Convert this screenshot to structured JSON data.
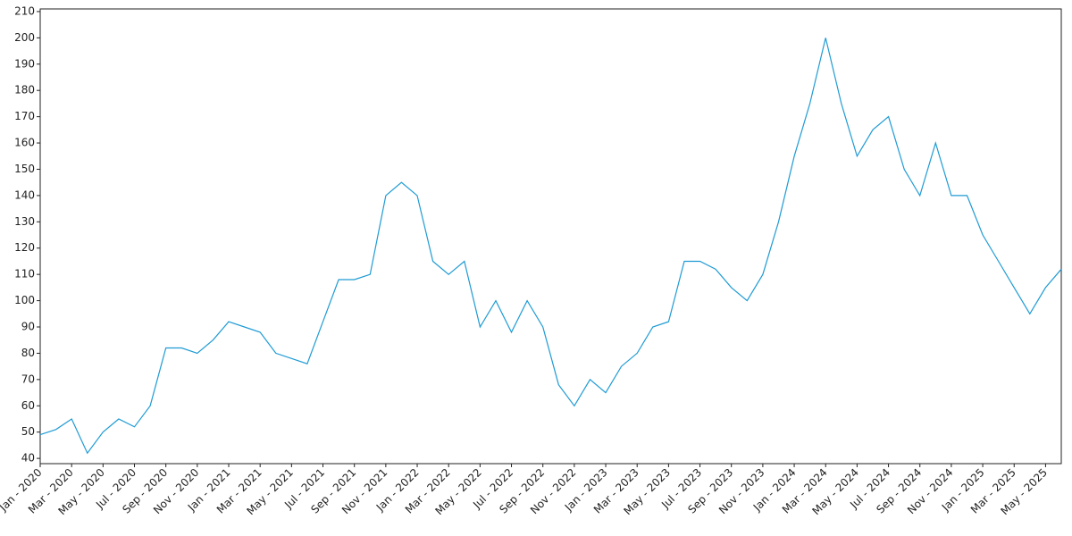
{
  "chart_data": {
    "type": "line",
    "color": "#1f9bd4",
    "x": [
      "2020-01",
      "2020-02",
      "2020-03",
      "2020-04",
      "2020-05",
      "2020-06",
      "2020-07",
      "2020-08",
      "2020-09",
      "2020-10",
      "2020-11",
      "2020-12",
      "2021-01",
      "2021-02",
      "2021-03",
      "2021-04",
      "2021-05",
      "2021-06",
      "2021-07",
      "2021-08",
      "2021-09",
      "2021-10",
      "2021-11",
      "2021-12",
      "2022-01",
      "2022-02",
      "2022-03",
      "2022-04",
      "2022-05",
      "2022-06",
      "2022-07",
      "2022-08",
      "2022-09",
      "2022-10",
      "2022-11",
      "2022-12",
      "2023-01",
      "2023-02",
      "2023-03",
      "2023-04",
      "2023-05",
      "2023-06",
      "2023-07",
      "2023-08",
      "2023-09",
      "2023-10",
      "2023-11",
      "2023-12",
      "2024-01",
      "2024-02",
      "2024-03",
      "2024-04",
      "2024-05",
      "2024-06",
      "2024-07",
      "2024-08",
      "2024-09",
      "2024-10",
      "2024-11",
      "2024-12",
      "2025-01",
      "2025-02",
      "2025-03",
      "2025-04",
      "2025-05",
      "2025-06"
    ],
    "values": [
      49,
      51,
      55,
      42,
      50,
      55,
      52,
      60,
      82,
      82,
      80,
      85,
      92,
      90,
      88,
      80,
      78,
      76,
      92,
      108,
      108,
      110,
      140,
      145,
      140,
      115,
      110,
      115,
      90,
      100,
      88,
      100,
      90,
      68,
      60,
      70,
      65,
      75,
      80,
      90,
      92,
      115,
      115,
      112,
      105,
      100,
      110,
      130,
      155,
      175,
      200,
      175,
      155,
      165,
      170,
      150,
      140,
      160,
      140,
      140,
      125,
      115,
      105,
      95,
      105,
      112
    ],
    "xlim": [
      "2020-01",
      "2025-06"
    ],
    "xticks": [
      {
        "value": "2020-01",
        "label": "Jan - 2020"
      },
      {
        "value": "2020-03",
        "label": "Mar - 2020"
      },
      {
        "value": "2020-05",
        "label": "May - 2020"
      },
      {
        "value": "2020-07",
        "label": "Jul - 2020"
      },
      {
        "value": "2020-09",
        "label": "Sep - 2020"
      },
      {
        "value": "2020-11",
        "label": "Nov - 2020"
      },
      {
        "value": "2021-01",
        "label": "Jan - 2021"
      },
      {
        "value": "2021-03",
        "label": "Mar - 2021"
      },
      {
        "value": "2021-05",
        "label": "May - 2021"
      },
      {
        "value": "2021-07",
        "label": "Jul - 2021"
      },
      {
        "value": "2021-09",
        "label": "Sep - 2021"
      },
      {
        "value": "2021-11",
        "label": "Nov - 2021"
      },
      {
        "value": "2022-01",
        "label": "Jan - 2022"
      },
      {
        "value": "2022-03",
        "label": "Mar - 2022"
      },
      {
        "value": "2022-05",
        "label": "May - 2022"
      },
      {
        "value": "2022-07",
        "label": "Jul - 2022"
      },
      {
        "value": "2022-09",
        "label": "Sep - 2022"
      },
      {
        "value": "2022-11",
        "label": "Nov - 2022"
      },
      {
        "value": "2023-01",
        "label": "Jan - 2023"
      },
      {
        "value": "2023-03",
        "label": "Mar - 2023"
      },
      {
        "value": "2023-05",
        "label": "May - 2023"
      },
      {
        "value": "2023-07",
        "label": "Jul - 2023"
      },
      {
        "value": "2023-09",
        "label": "Sep - 2023"
      },
      {
        "value": "2023-11",
        "label": "Nov - 2023"
      },
      {
        "value": "2024-01",
        "label": "Jan - 2024"
      },
      {
        "value": "2024-03",
        "label": "Mar - 2024"
      },
      {
        "value": "2024-05",
        "label": "May - 2024"
      },
      {
        "value": "2024-07",
        "label": "Jul - 2024"
      },
      {
        "value": "2024-09",
        "label": "Sep - 2024"
      },
      {
        "value": "2024-11",
        "label": "Nov - 2024"
      },
      {
        "value": "2025-01",
        "label": "Jan - 2025"
      },
      {
        "value": "2025-03",
        "label": "Mar - 2025"
      },
      {
        "value": "2025-05",
        "label": "May - 2025"
      }
    ],
    "ylim": [
      38,
      211
    ],
    "yticks": [
      40,
      50,
      60,
      70,
      80,
      90,
      100,
      110,
      120,
      130,
      140,
      150,
      160,
      170,
      180,
      190,
      200,
      210
    ],
    "grid": false
  }
}
